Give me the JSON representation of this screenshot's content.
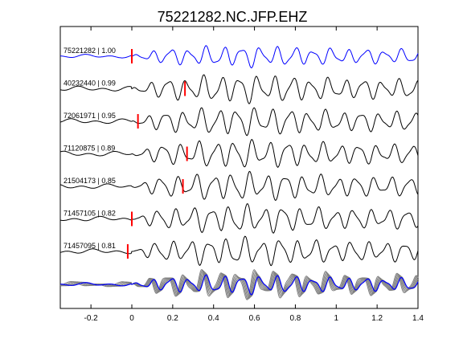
{
  "chart_data": {
    "type": "line",
    "title": "75221282.NC.JFP.EHZ",
    "xlabel": "",
    "ylabel": "",
    "xlim": [
      -0.35,
      1.4
    ],
    "x_ticks": [
      "-0.2",
      "0",
      "0.2",
      "0.4",
      "0.6",
      "0.8",
      "1",
      "1.2",
      "1.4"
    ],
    "x_tick_values": [
      -0.2,
      0,
      0.2,
      0.4,
      0.6,
      0.8,
      1.0,
      1.2,
      1.4
    ],
    "grid": false,
    "legend": "none",
    "colors": {
      "reference": "#0000ff",
      "trace": "#000000",
      "stack": "#808080",
      "pick": "#ff0000"
    },
    "traces": [
      {
        "label": "75221282 | 1.00",
        "event_id": "75221282",
        "correlation": 1.0,
        "pick_time": 0.0,
        "reference": true
      },
      {
        "label": "40232440 | 0.99",
        "event_id": "40232440",
        "correlation": 0.99,
        "pick_time": 0.26,
        "reference": false
      },
      {
        "label": "72061971 | 0.95",
        "event_id": "72061971",
        "correlation": 0.95,
        "pick_time": 0.03,
        "reference": false
      },
      {
        "label": "71120875 | 0.89",
        "event_id": "71120875",
        "correlation": 0.89,
        "pick_time": 0.27,
        "reference": false
      },
      {
        "label": "21504173 | 0.85",
        "event_id": "21504173",
        "correlation": 0.85,
        "pick_time": 0.25,
        "reference": false
      },
      {
        "label": "71457105 | 0.82",
        "event_id": "71457105",
        "correlation": 0.82,
        "pick_time": 0.0,
        "reference": false
      },
      {
        "label": "71457095 | 0.81",
        "event_id": "71457095",
        "correlation": 0.81,
        "pick_time": -0.02,
        "reference": false
      }
    ],
    "stack": {
      "x_start": -0.35,
      "x_end": 1.4,
      "onset": 0.0
    }
  }
}
